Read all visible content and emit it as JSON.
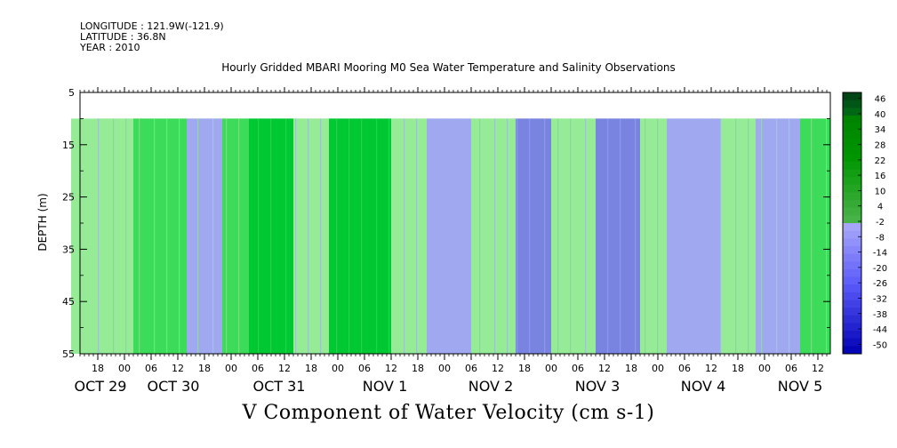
{
  "header": {
    "longitude": "LONGITUDE : 121.9W(-121.9)",
    "latitude": "LATITUDE : 36.8N",
    "year": "YEAR : 2010"
  },
  "chart_data": {
    "type": "heatmap",
    "title": "Hourly Gridded MBARI Mooring M0 Sea Water Temperature and Salinity Observations",
    "xlabel": "V Component of Water Velocity (cm s-1)",
    "ylabel": "DEPTH (m)",
    "y_ticks": [
      5,
      15,
      25,
      35,
      45,
      55
    ],
    "ylim": [
      55,
      5
    ],
    "data_depth_range": [
      10,
      55
    ],
    "hour_ticks": [
      "18",
      "00",
      "06",
      "12",
      "18",
      "00",
      "06",
      "12",
      "18",
      "00",
      "06",
      "12",
      "18",
      "00",
      "06",
      "12",
      "18",
      "00",
      "06",
      "12",
      "18",
      "00",
      "06",
      "12",
      "18",
      "00",
      "06",
      "12"
    ],
    "day_labels": [
      "OCT 29",
      "OCT 30",
      "OCT 31",
      "NOV 1",
      "NOV 2",
      "NOV 3",
      "NOV 4",
      "NOV 5"
    ],
    "colorbar_levels": [
      "46",
      "40",
      "34",
      "28",
      "22",
      "16",
      "10",
      "4",
      "-2",
      "-8",
      "-14",
      "-20",
      "-26",
      "-32",
      "-38",
      "-44",
      "-50"
    ],
    "colorbar_range": [
      -50,
      50
    ],
    "colors": {
      "strong_positive": "#00c832",
      "positive": "#3cdc5a",
      "weak_positive": "#96ec96",
      "weak_negative": "#a0a8f0",
      "negative": "#7884e0",
      "strong_negative": "#5064d8"
    },
    "time_start": "OCT 29 12:00",
    "time_end": "NOV 5 17:00",
    "column_velocity_bands": [
      {
        "from": "OCT 29 18",
        "to": "OCT 30 02",
        "value": 6
      },
      {
        "from": "OCT 30 02",
        "to": "OCT 30 14",
        "value": 12
      },
      {
        "from": "OCT 30 14",
        "to": "OCT 30 22",
        "value": -6
      },
      {
        "from": "OCT 30 22",
        "to": "OCT 31 04",
        "value": 10
      },
      {
        "from": "OCT 31 04",
        "to": "OCT 31 14",
        "value": 20
      },
      {
        "from": "OCT 31 14",
        "to": "OCT 31 22",
        "value": 2
      },
      {
        "from": "OCT 31 22",
        "to": "NOV 1 12",
        "value": 18
      },
      {
        "from": "NOV 1 12",
        "to": "NOV 1 20",
        "value": 6
      },
      {
        "from": "NOV 1 20",
        "to": "NOV 2 06",
        "value": -8
      },
      {
        "from": "NOV 2 06",
        "to": "NOV 2 16",
        "value": 4
      },
      {
        "from": "NOV 2 16",
        "to": "NOV 3 00",
        "value": -10
      },
      {
        "from": "NOV 3 00",
        "to": "NOV 3 10",
        "value": 6
      },
      {
        "from": "NOV 3 10",
        "to": "NOV 3 20",
        "value": -14
      },
      {
        "from": "NOV 3 20",
        "to": "NOV 4 02",
        "value": 4
      },
      {
        "from": "NOV 4 02",
        "to": "NOV 4 14",
        "value": -8
      },
      {
        "from": "NOV 4 14",
        "to": "NOV 4 22",
        "value": 6
      },
      {
        "from": "NOV 4 22",
        "to": "NOV 5 08",
        "value": -6
      },
      {
        "from": "NOV 5 08",
        "to": "NOV 5 17",
        "value": 10
      }
    ]
  }
}
